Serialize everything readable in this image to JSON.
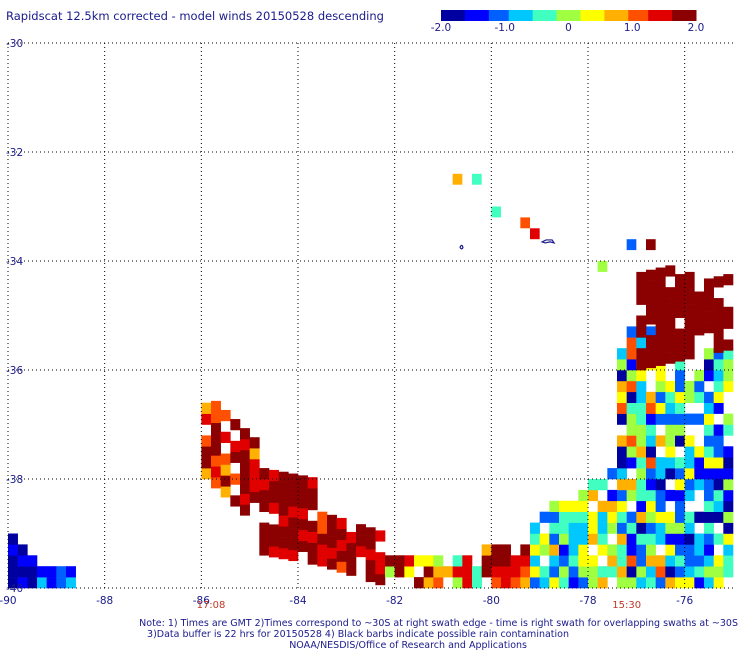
{
  "chart_data": {
    "type": "heatmap",
    "title": "Rapidscat 12.5km corrected - model winds 20150528 descending",
    "colorbar": {
      "min": -2.0,
      "max": 2.0,
      "ticks": [
        "-2.0",
        "-1.0",
        "0",
        "1.0",
        "2.0"
      ],
      "tick_values": [
        -2,
        -1,
        0,
        1,
        2
      ],
      "colors": [
        "#0000a0",
        "#0000ff",
        "#0060ff",
        "#00c8ff",
        "#40ffc0",
        "#a0ff40",
        "#ffff00",
        "#ffb000",
        "#ff5000",
        "#e00000",
        "#8b0000"
      ]
    },
    "x_axis": {
      "range": [
        -90,
        -75
      ],
      "ticks": [
        -90,
        -88,
        -86,
        -84,
        -82,
        -80,
        -78,
        -76
      ],
      "tick_labels": [
        "-90",
        "-88",
        "-86",
        "-84",
        "-82",
        "-80",
        "-78",
        "-76"
      ]
    },
    "y_axis": {
      "range": [
        -40,
        -30
      ],
      "ticks": [
        -30,
        -32,
        -34,
        -36,
        -38,
        -40
      ],
      "tick_labels": [
        "-30",
        "-32",
        "-34",
        "-36",
        "-38",
        "-40"
      ]
    },
    "grid": true,
    "cell_size_deg": 0.2,
    "swaths": [
      {
        "name": "left",
        "time": "17:08",
        "time_lon": -85.8
      },
      {
        "name": "right",
        "time": "15:30",
        "time_lon": -77.2
      }
    ],
    "regions": [
      {
        "lon": [
          -90.0,
          -89.4
        ],
        "lat_from": [
          -40.0,
          -40.0
        ],
        "lat_to": [
          -39.0,
          -39.6
        ],
        "bias": -1.8,
        "spread": 0.4
      },
      {
        "lon": [
          -89.4,
          -88.6
        ],
        "lat_from": [
          -40.0,
          -40.0
        ],
        "lat_to": [
          -39.6,
          -39.8
        ],
        "bias": -1.0,
        "spread": 0.6
      },
      {
        "lon": [
          -86.0,
          -84.8
        ],
        "lat_from": [
          -38.0,
          -39.0
        ],
        "lat_to": [
          -36.6,
          -37.4
        ],
        "bias": 1.4,
        "spread": 0.8
      },
      {
        "lon": [
          -84.8,
          -83.6
        ],
        "lat_from": [
          -39.4,
          -39.6
        ],
        "lat_to": [
          -37.8,
          -38.0
        ],
        "bias": 1.8,
        "spread": 0.4
      },
      {
        "lon": [
          -83.6,
          -82.2
        ],
        "lat_from": [
          -39.6,
          -40.0
        ],
        "lat_to": [
          -38.6,
          -39.2
        ],
        "bias": 1.7,
        "spread": 0.6
      },
      {
        "lon": [
          -82.2,
          -80.2
        ],
        "lat_from": [
          -40.0,
          -40.0
        ],
        "lat_to": [
          -39.4,
          -39.6
        ],
        "bias": 0.9,
        "spread": 1.1
      },
      {
        "lon": [
          -80.2,
          -79.2
        ],
        "lat_from": [
          -40.0,
          -40.0
        ],
        "lat_to": [
          -39.2,
          -39.2
        ],
        "bias": 1.5,
        "spread": 0.8
      },
      {
        "lon": [
          -79.2,
          -77.4
        ],
        "lat_from": [
          -40.0,
          -40.0
        ],
        "lat_to": [
          -38.8,
          -37.8
        ],
        "bias": -0.4,
        "spread": 1.2
      },
      {
        "lon": [
          -77.4,
          -76.4
        ],
        "lat_from": [
          -40.0,
          -40.0
        ],
        "lat_to": [
          -35.6,
          -34.2
        ],
        "bias": -0.3,
        "spread": 1.6
      },
      {
        "lon": [
          -76.4,
          -75.0
        ],
        "lat_from": [
          -40.0,
          -40.0
        ],
        "lat_to": [
          -36.0,
          -35.6
        ],
        "bias": -0.6,
        "spread": 1.2
      },
      {
        "lon": [
          -77.0,
          -75.0
        ],
        "lat_from": [
          -36.0,
          -35.6
        ],
        "lat_to": [
          -34.2,
          -34.4
        ],
        "bias": 2.0,
        "spread": 0.2
      }
    ],
    "isolated_points": [
      {
        "lon": -80.8,
        "lat": -32.6,
        "value": 0.8
      },
      {
        "lon": -80.4,
        "lat": -32.6,
        "value": -0.3
      },
      {
        "lon": -80.0,
        "lat": -33.2,
        "value": -0.2
      },
      {
        "lon": -79.4,
        "lat": -33.4,
        "value": 1.0
      },
      {
        "lon": -79.2,
        "lat": -33.6,
        "value": 1.3
      },
      {
        "lon": -77.8,
        "lat": -34.2,
        "value": -0.1
      },
      {
        "lon": -77.2,
        "lat": -33.8,
        "value": -1.2
      },
      {
        "lon": -76.8,
        "lat": -33.8,
        "value": 2.0
      }
    ]
  },
  "footer": {
    "note_line1": "Note: 1) Times are GMT 2)Times correspond to ~30S at right swath edge - time is right swath for overlapping swaths at ~30S",
    "note_line2": "3)Data buffer is 22 hrs for 20150528 4) Black barbs indicate possible rain contamination",
    "credit": "NOAA/NESDIS/Office of Research and Applications"
  }
}
